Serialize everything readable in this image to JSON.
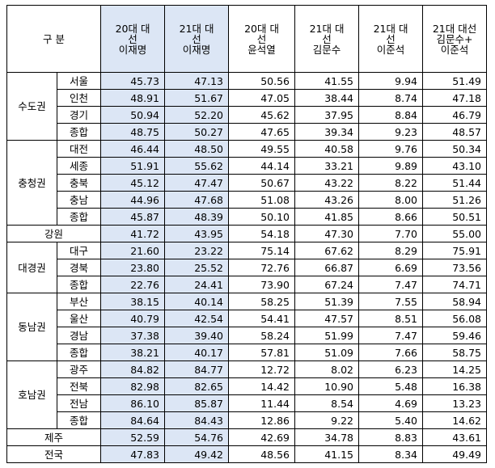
{
  "header": {
    "category": "구 분",
    "columns": [
      [
        "20대 대",
        "선",
        "이재명"
      ],
      [
        "21대 대",
        "선",
        "이재명"
      ],
      [
        "20대 대",
        "선",
        "윤석열"
      ],
      [
        "21대 대",
        "선",
        "김문수"
      ],
      [
        "21대 대",
        "선",
        "이준석"
      ],
      [
        "21대 대선",
        "김문수+",
        "이준석"
      ]
    ]
  },
  "highlight_color": "#dce6f5",
  "groups": [
    {
      "region": "수도권",
      "rows": [
        {
          "sub": "서울",
          "values": [
            "45.73",
            "47.13",
            "50.56",
            "41.55",
            "9.94",
            "51.49"
          ]
        },
        {
          "sub": "인천",
          "values": [
            "48.91",
            "51.67",
            "47.05",
            "38.44",
            "8.74",
            "47.18"
          ]
        },
        {
          "sub": "경기",
          "values": [
            "50.94",
            "52.20",
            "45.62",
            "37.95",
            "8.84",
            "46.79"
          ]
        },
        {
          "sub": "종합",
          "values": [
            "48.75",
            "50.27",
            "47.65",
            "39.34",
            "9.23",
            "48.57"
          ]
        }
      ]
    },
    {
      "region": "충청권",
      "rows": [
        {
          "sub": "대전",
          "values": [
            "46.44",
            "48.50",
            "49.55",
            "40.58",
            "9.76",
            "50.34"
          ]
        },
        {
          "sub": "세종",
          "values": [
            "51.91",
            "55.62",
            "44.14",
            "33.21",
            "9.89",
            "43.10"
          ]
        },
        {
          "sub": "충북",
          "values": [
            "45.12",
            "47.47",
            "50.67",
            "43.22",
            "8.22",
            "51.44"
          ]
        },
        {
          "sub": "충남",
          "values": [
            "44.96",
            "47.68",
            "51.08",
            "43.26",
            "8.00",
            "51.26"
          ]
        },
        {
          "sub": "종합",
          "values": [
            "45.87",
            "48.39",
            "50.10",
            "41.85",
            "8.66",
            "50.51"
          ]
        }
      ]
    },
    {
      "region": "강원",
      "single": true,
      "values": [
        "41.72",
        "43.95",
        "54.18",
        "47.30",
        "7.70",
        "55.00"
      ]
    },
    {
      "region": "대경권",
      "rows": [
        {
          "sub": "대구",
          "values": [
            "21.60",
            "23.22",
            "75.14",
            "67.62",
            "8.29",
            "75.91"
          ]
        },
        {
          "sub": "경북",
          "values": [
            "23.80",
            "25.52",
            "72.76",
            "66.87",
            "6.69",
            "73.56"
          ]
        },
        {
          "sub": "종합",
          "values": [
            "22.76",
            "24.41",
            "73.90",
            "67.24",
            "7.47",
            "74.71"
          ]
        }
      ]
    },
    {
      "region": "동남권",
      "rows": [
        {
          "sub": "부산",
          "values": [
            "38.15",
            "40.14",
            "58.25",
            "51.39",
            "7.55",
            "58.94"
          ]
        },
        {
          "sub": "울산",
          "values": [
            "40.79",
            "42.54",
            "54.41",
            "47.57",
            "8.51",
            "56.08"
          ]
        },
        {
          "sub": "경남",
          "values": [
            "37.38",
            "39.40",
            "58.24",
            "51.99",
            "7.47",
            "59.46"
          ]
        },
        {
          "sub": "종합",
          "values": [
            "38.21",
            "40.17",
            "57.81",
            "51.09",
            "7.66",
            "58.75"
          ]
        }
      ]
    },
    {
      "region": "호남권",
      "rows": [
        {
          "sub": "광주",
          "values": [
            "84.82",
            "84.77",
            "12.72",
            "8.02",
            "6.23",
            "14.25"
          ]
        },
        {
          "sub": "전북",
          "values": [
            "82.98",
            "82.65",
            "14.42",
            "10.90",
            "5.48",
            "16.38"
          ]
        },
        {
          "sub": "전남",
          "values": [
            "86.10",
            "85.87",
            "11.44",
            "8.54",
            "4.69",
            "13.23"
          ]
        },
        {
          "sub": "종합",
          "values": [
            "84.64",
            "84.43",
            "12.86",
            "9.22",
            "5.40",
            "14.62"
          ]
        }
      ]
    },
    {
      "region": "제주",
      "single": true,
      "values": [
        "52.59",
        "54.76",
        "42.69",
        "34.78",
        "8.83",
        "43.61"
      ]
    },
    {
      "region": "전국",
      "single": true,
      "values": [
        "47.83",
        "49.42",
        "48.56",
        "41.15",
        "8.34",
        "49.49"
      ]
    }
  ]
}
